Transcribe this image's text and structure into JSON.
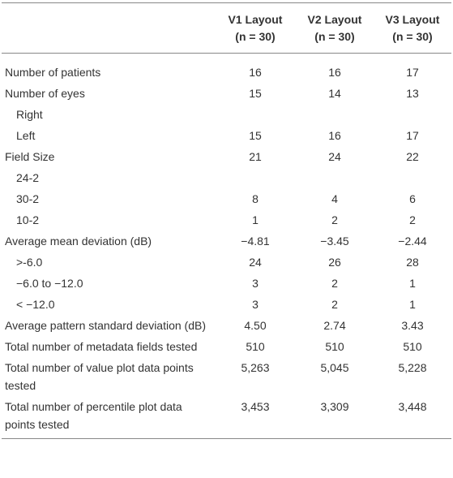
{
  "table": {
    "columns": [
      {
        "name": "V1 Layout",
        "sample": "(n = 30)"
      },
      {
        "name": "V2 Layout",
        "sample": "(n = 30)"
      },
      {
        "name": "V3 Layout",
        "sample": "(n = 30)"
      }
    ],
    "rows": [
      {
        "label": "Number of patients",
        "values": [
          "16",
          "16",
          "17"
        ]
      },
      {
        "label": "Number of eyes",
        "values": [
          "15",
          "14",
          "13"
        ]
      },
      {
        "label": "Right",
        "indent": true
      },
      {
        "label": "Left",
        "indent": true,
        "values": [
          "15",
          "16",
          "17"
        ]
      },
      {
        "label": "Field Size",
        "values": [
          "21",
          "24",
          "22"
        ]
      },
      {
        "label": "24-2",
        "indent": true
      },
      {
        "label": "30-2",
        "indent": true,
        "values": [
          "8",
          "4",
          "6"
        ]
      },
      {
        "label": "10-2",
        "indent": true,
        "values": [
          "1",
          "2",
          "2"
        ]
      },
      {
        "label": "Average mean deviation (dB)",
        "values": [
          "−4.81",
          "−3.45",
          "−2.44"
        ]
      },
      {
        "label": ">-6.0",
        "indent": true,
        "values": [
          "24",
          "26",
          "28"
        ]
      },
      {
        "label": "−6.0 to −12.0",
        "indent": true,
        "values": [
          "3",
          "2",
          "1"
        ]
      },
      {
        "label": "< −12.0",
        "indent": true,
        "values": [
          "3",
          "2",
          "1"
        ]
      },
      {
        "label": "Average pattern standard deviation (dB)",
        "values": [
          "4.50",
          "2.74",
          "3.43"
        ]
      },
      {
        "label": "Total number of metadata fields tested",
        "values": [
          "510",
          "510",
          "510"
        ]
      },
      {
        "label": "Total number of value plot data points tested",
        "values": [
          "5,263",
          "5,045",
          "5,228"
        ]
      },
      {
        "label": "Total number of percentile plot data points tested",
        "values": [
          "3,453",
          "3,309",
          "3,448"
        ]
      }
    ]
  }
}
